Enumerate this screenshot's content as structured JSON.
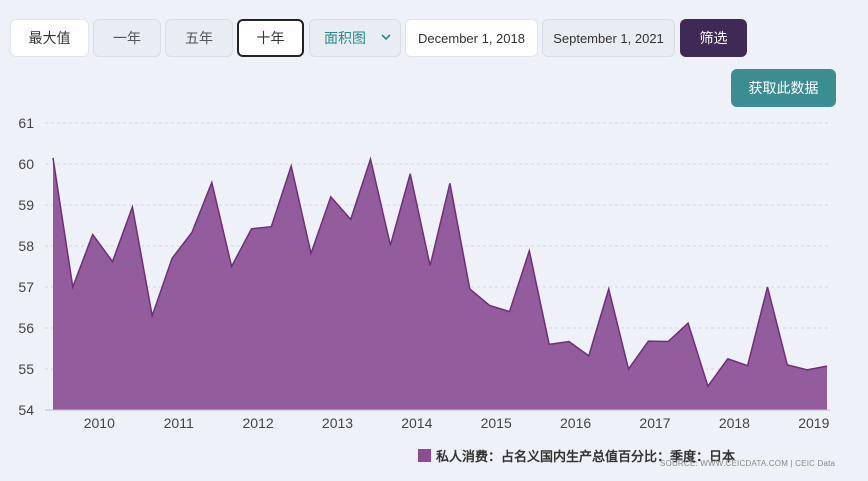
{
  "filters": {
    "max_label": "最大值",
    "one_year_label": "一年",
    "five_year_label": "五年",
    "ten_year_label": "十年",
    "chart_type_selected": "面积图",
    "start_date": "December 1, 2018",
    "end_date": "September 1, 2021",
    "filter_label": "筛选"
  },
  "get_data_label": "获取此数据",
  "legend_label": "私人消费：占名义国内生产总值百分比：季度：日本",
  "source_label": "SOURCE: WWW.CEICDATA.COM | CEIC Data",
  "colors": {
    "area_fill": "#935c9c",
    "area_line": "#6e2f78",
    "filter_button": "#3f2a55",
    "get_data_button": "#3c8d91"
  },
  "chart_data": {
    "type": "area",
    "title": "",
    "xlabel": "",
    "ylabel": "",
    "ylim": [
      54,
      61
    ],
    "yticks": [
      54,
      55,
      56,
      57,
      58,
      59,
      60,
      61
    ],
    "xticks": [
      2010,
      2011,
      2012,
      2013,
      2014,
      2015,
      2016,
      2017,
      2018,
      2019
    ],
    "grid": true,
    "legend_position": "bottom",
    "series": [
      {
        "name": "私人消费：占名义国内生产总值百分比：季度：日本",
        "x": [
          "2009-09",
          "2009-12",
          "2010-03",
          "2010-06",
          "2010-09",
          "2010-12",
          "2011-03",
          "2011-06",
          "2011-09",
          "2011-12",
          "2012-03",
          "2012-06",
          "2012-09",
          "2012-12",
          "2013-03",
          "2013-06",
          "2013-09",
          "2013-12",
          "2014-03",
          "2014-06",
          "2014-09",
          "2014-12",
          "2015-03",
          "2015-06",
          "2015-09",
          "2015-12",
          "2016-03",
          "2016-06",
          "2016-09",
          "2016-12",
          "2017-03",
          "2017-06",
          "2017-09",
          "2017-12",
          "2018-03",
          "2018-06",
          "2018-09",
          "2018-12",
          "2019-03",
          "2019-06"
        ],
        "values": [
          60.15,
          57.0,
          58.28,
          57.62,
          58.95,
          56.3,
          57.7,
          58.33,
          59.55,
          57.5,
          58.42,
          58.47,
          59.95,
          57.82,
          59.2,
          58.65,
          60.12,
          58.02,
          59.76,
          57.52,
          59.53,
          56.95,
          56.55,
          56.4,
          57.88,
          55.6,
          55.67,
          55.32,
          56.95,
          55.0,
          55.68,
          55.67,
          56.12,
          54.58,
          55.25,
          55.08,
          57.0,
          55.1,
          54.98,
          55.07
        ]
      }
    ]
  }
}
